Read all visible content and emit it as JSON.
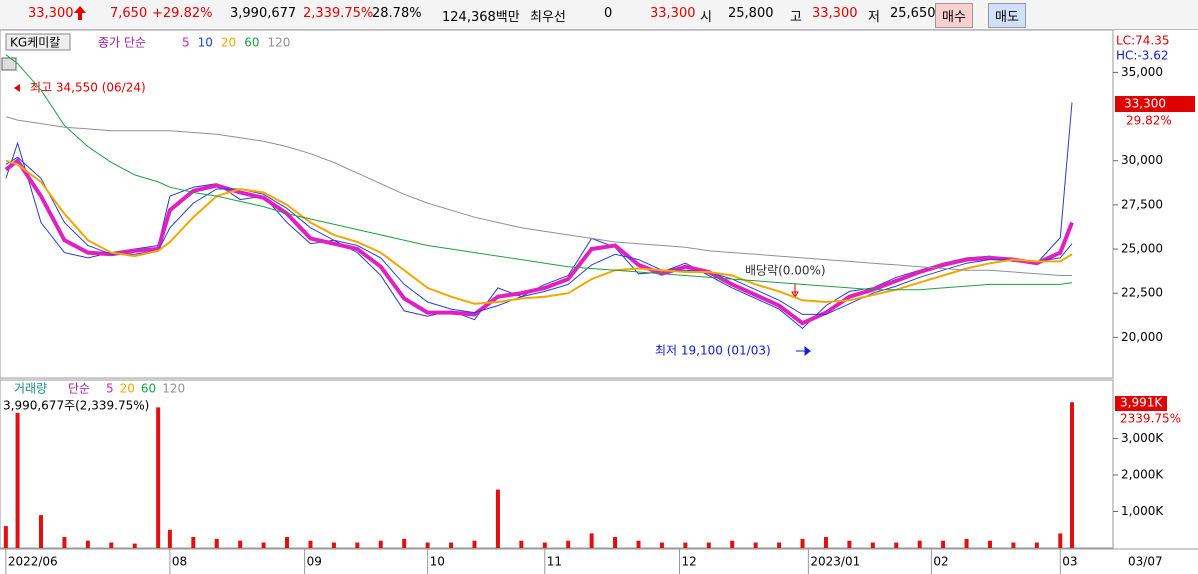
{
  "header": {
    "items": [
      {
        "text": "33,300",
        "color": "#e00000"
      },
      {
        "text": "7,650",
        "color": "#e00000"
      },
      {
        "text": "+29.82%",
        "color": "#e00000"
      },
      {
        "text": "3,990,677",
        "color": "#000"
      },
      {
        "text": "2,339.75%",
        "color": "#e00000"
      },
      {
        "text": "28.78%",
        "color": "#000"
      },
      {
        "text": "124,368백만",
        "color": "#000"
      },
      {
        "text": "최우선",
        "color": "#000"
      },
      {
        "text": "0",
        "color": "#000"
      },
      {
        "text": "33,300",
        "color": "#e00000"
      },
      {
        "text": "시",
        "color": "#000"
      },
      {
        "text": "25,800",
        "color": "#000"
      },
      {
        "text": "고",
        "color": "#000"
      },
      {
        "text": "33,300",
        "color": "#e00000"
      },
      {
        "text": "저",
        "color": "#000"
      },
      {
        "text": "25,650",
        "color": "#000"
      }
    ],
    "buy": "매수",
    "sell": "매도"
  },
  "chart_data": [
    {
      "type": "line",
      "title": "KG케미칼",
      "legend_title": "종가 단순",
      "annotations": [
        "최고 34,550 (06/24)",
        "배당락(0.00%)",
        "최저 19,100 (01/03)"
      ],
      "lc": "LC:74.35",
      "hc": "HC:-3.62",
      "last_label": "33,300",
      "change_label": "29.82%",
      "x": [
        0,
        2,
        6,
        10,
        14,
        18,
        22,
        26,
        28,
        32,
        36,
        40,
        44,
        48,
        52,
        56,
        60,
        64,
        68,
        72,
        76,
        80,
        84,
        88,
        92,
        96,
        100,
        104,
        108,
        112,
        116,
        120,
        124,
        128,
        132,
        136,
        140,
        144,
        148,
        152,
        156,
        160,
        164,
        168,
        172,
        176,
        180,
        182
      ],
      "xlim": [
        -1,
        189
      ],
      "xticks": [
        {
          "value": 0,
          "label": "2022/06"
        },
        {
          "value": 28,
          "label": "08"
        },
        {
          "value": 51,
          "label": "09"
        },
        {
          "value": 72,
          "label": "10"
        },
        {
          "value": 92,
          "label": "11"
        },
        {
          "value": 115,
          "label": "12"
        },
        {
          "value": 137,
          "label": "2023/01"
        },
        {
          "value": 158,
          "label": "02"
        },
        {
          "value": 180,
          "label": "03"
        }
      ],
      "x_end_label": "03/07",
      "ylim": [
        17700,
        37400
      ],
      "yticks": [
        {
          "value": 20000,
          "label": "20,000"
        },
        {
          "value": 22500,
          "label": "22,500"
        },
        {
          "value": 25000,
          "label": "25,000"
        },
        {
          "value": 27500,
          "label": "27,500"
        },
        {
          "value": 30000,
          "label": "30,000"
        },
        {
          "value": 35000,
          "label": "35,000"
        }
      ],
      "series": [
        {
          "color": "#2b3fbf",
          "width": 1,
          "values": [
            29000,
            31000,
            26500,
            24800,
            24500,
            24800,
            25000,
            25200,
            28000,
            28500,
            28700,
            27800,
            28000,
            26500,
            25300,
            25500,
            24800,
            23500,
            21500,
            21200,
            21500,
            21000,
            22800,
            22300,
            23000,
            23500,
            25600,
            25100,
            23600,
            23700,
            24200,
            23500,
            22800,
            22200,
            21600,
            20500,
            21800,
            22600,
            22800,
            23400,
            23800,
            24200,
            24500,
            24600,
            24300,
            24200,
            25650,
            33300
          ]
        },
        {
          "name": "5",
          "color": "#e020c0",
          "width": 4,
          "values": [
            29500,
            30000,
            28000,
            25500,
            24800,
            24700,
            24900,
            25000,
            27200,
            28300,
            28600,
            28200,
            27900,
            27000,
            25600,
            25300,
            25000,
            24000,
            22200,
            21400,
            21400,
            21300,
            22300,
            22500,
            22800,
            23300,
            25000,
            25200,
            24100,
            23600,
            24000,
            23700,
            23000,
            22400,
            21800,
            20800,
            21400,
            22300,
            22700,
            23200,
            23700,
            24100,
            24400,
            24500,
            24400,
            24200,
            24800,
            26500
          ]
        },
        {
          "name": "10",
          "color": "#2040e0",
          "width": 1,
          "values": [
            29800,
            30200,
            29000,
            26500,
            25200,
            24700,
            24700,
            24900,
            26200,
            27600,
            28400,
            28400,
            28100,
            27300,
            26200,
            25500,
            25200,
            24500,
            23000,
            22000,
            21600,
            21400,
            21800,
            22300,
            22600,
            23000,
            24100,
            24700,
            24400,
            23800,
            23800,
            23700,
            23300,
            22700,
            22100,
            21300,
            21300,
            21900,
            22500,
            22900,
            23400,
            23800,
            24200,
            24400,
            24400,
            24300,
            24500,
            25300
          ]
        },
        {
          "name": "20",
          "color": "#f0a800",
          "width": 2,
          "values": [
            30000,
            29800,
            28800,
            27000,
            25500,
            24800,
            24600,
            24900,
            25400,
            26800,
            28000,
            28400,
            28200,
            27500,
            26500,
            25800,
            25400,
            24800,
            23800,
            22800,
            22300,
            21900,
            22000,
            22200,
            22300,
            22500,
            23300,
            23800,
            23900,
            23800,
            23700,
            23700,
            23500,
            23000,
            22600,
            22100,
            22000,
            22100,
            22400,
            22700,
            23100,
            23500,
            23900,
            24200,
            24400,
            24300,
            24300,
            24700
          ]
        },
        {
          "name": "60",
          "color": "#20a040",
          "width": 1,
          "values": [
            36000,
            35500,
            34000,
            32000,
            30800,
            29900,
            29200,
            28800,
            28500,
            28200,
            28000,
            27700,
            27400,
            27000,
            26700,
            26400,
            26100,
            25800,
            25500,
            25200,
            25000,
            24800,
            24600,
            24400,
            24200,
            24000,
            23900,
            23800,
            23700,
            23600,
            23500,
            23400,
            23300,
            23200,
            23100,
            23000,
            22900,
            22800,
            22700,
            22700,
            22700,
            22800,
            22900,
            23000,
            23000,
            23000,
            23000,
            23100
          ]
        },
        {
          "name": "120",
          "color": "#909090",
          "width": 1,
          "values": [
            32500,
            32300,
            32100,
            31900,
            31800,
            31700,
            31700,
            31700,
            31700,
            31600,
            31500,
            31300,
            31100,
            30800,
            30400,
            29900,
            29300,
            28700,
            28100,
            27600,
            27200,
            26800,
            26500,
            26200,
            26000,
            25800,
            25600,
            25400,
            25300,
            25200,
            25100,
            24900,
            24800,
            24700,
            24600,
            24500,
            24400,
            24300,
            24200,
            24100,
            24000,
            23900,
            23800,
            23800,
            23700,
            23600,
            23500,
            23500
          ]
        }
      ]
    },
    {
      "type": "bar",
      "title": "거래량",
      "legend_title": "단순",
      "ma_names": [
        {
          "text": "5",
          "color": "#e020c0"
        },
        {
          "text": "20",
          "color": "#f0a800"
        },
        {
          "text": "60",
          "color": "#20a040"
        },
        {
          "text": "120",
          "color": "#909090"
        }
      ],
      "volume_label": "3,990,677주(2,339.75%)",
      "last_label": "3,991K",
      "change_label": "2339.75%",
      "xlim": [
        -1,
        189
      ],
      "x": [
        0,
        2,
        6,
        10,
        14,
        18,
        22,
        26,
        28,
        32,
        36,
        40,
        44,
        48,
        52,
        56,
        60,
        64,
        68,
        72,
        76,
        80,
        84,
        88,
        92,
        96,
        100,
        104,
        108,
        112,
        116,
        120,
        124,
        128,
        132,
        136,
        140,
        144,
        148,
        152,
        156,
        160,
        164,
        168,
        172,
        176,
        180,
        182
      ],
      "ylim": [
        0,
        4600
      ],
      "yticks": [
        {
          "value": 1000,
          "label": "1,000K"
        },
        {
          "value": 2000,
          "label": "2,000K"
        },
        {
          "value": 3000,
          "label": "3,000K"
        }
      ],
      "color": "#e01010",
      "values": [
        600,
        3700,
        900,
        300,
        200,
        150,
        120,
        3850,
        500,
        300,
        250,
        200,
        150,
        300,
        200,
        150,
        150,
        200,
        250,
        150,
        150,
        200,
        1600,
        200,
        150,
        200,
        400,
        300,
        200,
        150,
        150,
        150,
        200,
        150,
        150,
        250,
        300,
        200,
        150,
        150,
        200,
        200,
        250,
        200,
        150,
        150,
        400,
        3991
      ]
    }
  ]
}
